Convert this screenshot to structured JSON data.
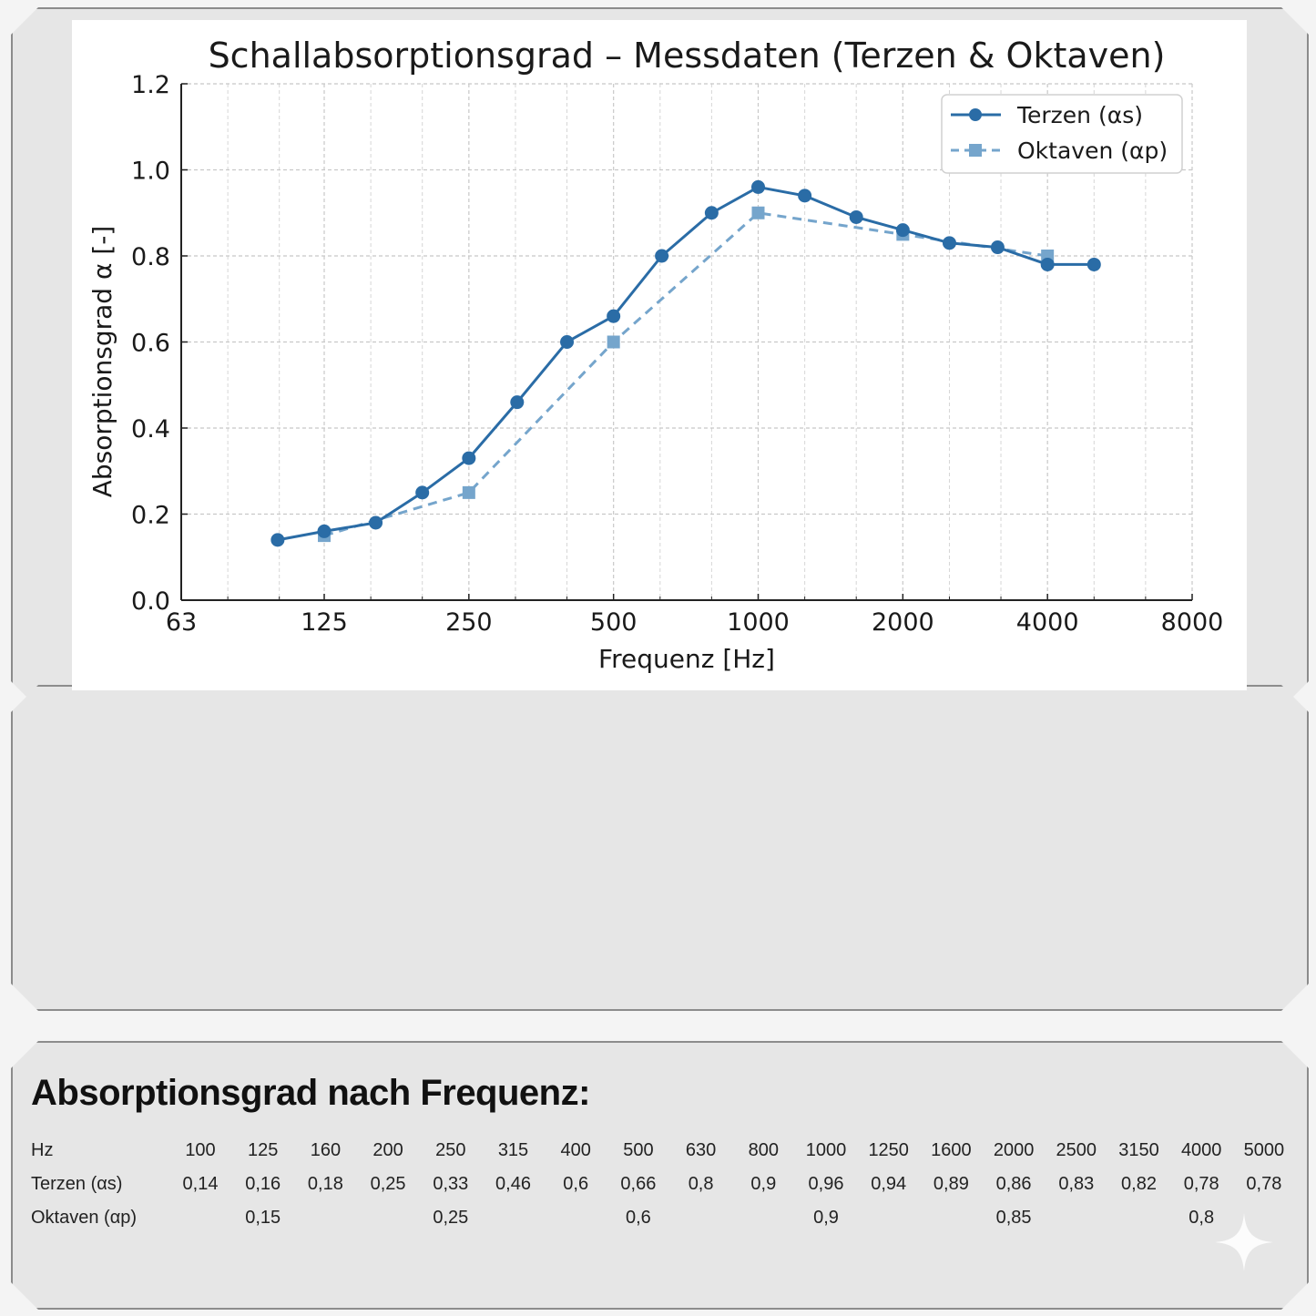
{
  "chart_data": {
    "type": "line",
    "title": "Schallabsorptionsgrad – Messdaten (Terzen & Oktaven)",
    "xlabel": "Frequenz [Hz]",
    "ylabel": "Absorptionsgrad α [-]",
    "x_scale": "log",
    "xlim": [
      63,
      8000
    ],
    "ylim": [
      0,
      1.2
    ],
    "x_ticks": [
      "63",
      "125",
      "250",
      "500",
      "1000",
      "2000",
      "4000",
      "8000"
    ],
    "y_ticks": [
      "0.0",
      "0.2",
      "0.4",
      "0.6",
      "0.8",
      "1.0",
      "1.2"
    ],
    "grid": true,
    "legend_position": "top-right",
    "series": [
      {
        "name": "Terzen (αs)",
        "style": "solid-circle",
        "color": "#2a6ca6",
        "x": [
          100,
          125,
          160,
          200,
          250,
          315,
          400,
          500,
          630,
          800,
          1000,
          1250,
          1600,
          2000,
          2500,
          3150,
          4000,
          5000
        ],
        "values": [
          0.14,
          0.16,
          0.18,
          0.25,
          0.33,
          0.46,
          0.6,
          0.66,
          0.8,
          0.9,
          0.96,
          0.94,
          0.89,
          0.86,
          0.83,
          0.82,
          0.78,
          0.78
        ]
      },
      {
        "name": "Oktaven (αp)",
        "style": "dashed-square",
        "color": "#75a5cc",
        "x": [
          125,
          250,
          500,
          1000,
          2000,
          4000
        ],
        "values": [
          0.15,
          0.25,
          0.6,
          0.9,
          0.85,
          0.8
        ]
      }
    ]
  },
  "table": {
    "title": "Absorptionsgrad nach Frequenz:",
    "rows": [
      {
        "label": "Hz",
        "cells": [
          "100",
          "125",
          "160",
          "200",
          "250",
          "315",
          "400",
          "500",
          "630",
          "800",
          "1000",
          "1250",
          "1600",
          "2000",
          "2500",
          "3150",
          "4000",
          "5000"
        ]
      },
      {
        "label": "Terzen (αs)",
        "cells": [
          "0,14",
          "0,16",
          "0,18",
          "0,25",
          "0,33",
          "0,46",
          "0,6",
          "0,66",
          "0,8",
          "0,9",
          "0,96",
          "0,94",
          "0,89",
          "0,86",
          "0,83",
          "0,82",
          "0,78",
          "0,78"
        ]
      },
      {
        "label": "Oktaven (αp)",
        "cells": [
          "",
          "0,15",
          "",
          "",
          "0,25",
          "",
          "",
          "0,6",
          "",
          "",
          "0,9",
          "",
          "",
          "0,85",
          "",
          "",
          "0,8",
          ""
        ]
      }
    ]
  },
  "icons": {
    "corner_decoration": "sparkle-icon"
  }
}
